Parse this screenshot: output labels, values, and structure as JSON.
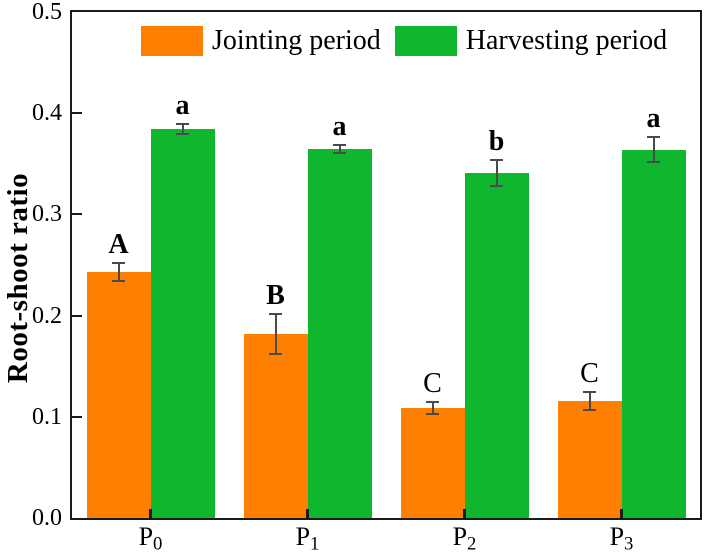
{
  "figure": {
    "background": "#ffffff",
    "frame_color": "#1a1a1a",
    "error_bar_color": "#4a4a4a"
  },
  "chart_data": {
    "type": "bar",
    "title": "",
    "xlabel": "",
    "ylabel": "Root-shoot ratio",
    "ylim": [
      0.0,
      0.5
    ],
    "ytick_step": 0.1,
    "ytick_labels": [
      "0.0",
      "0.1",
      "0.2",
      "0.3",
      "0.4",
      "0.5"
    ],
    "grid": false,
    "legend_position": "top-inside",
    "categories": [
      {
        "base": "P",
        "sub": "0"
      },
      {
        "base": "P",
        "sub": "1"
      },
      {
        "base": "P",
        "sub": "2"
      },
      {
        "base": "P",
        "sub": "3"
      }
    ],
    "series": [
      {
        "name": "Jointing period",
        "color": "#FF8000",
        "values": [
          0.243,
          0.182,
          0.109,
          0.116
        ],
        "errors": [
          0.009,
          0.02,
          0.006,
          0.009
        ],
        "sig_letters": [
          "A",
          "B",
          "C",
          "C"
        ],
        "sig_bold": [
          true,
          true,
          false,
          false
        ]
      },
      {
        "name": "Harvesting period",
        "color": "#0FB62E",
        "values": [
          0.384,
          0.365,
          0.341,
          0.364
        ],
        "errors": [
          0.005,
          0.004,
          0.013,
          0.012
        ],
        "sig_letters": [
          "a",
          "a",
          "b",
          "a"
        ],
        "sig_bold": [
          true,
          true,
          true,
          true
        ]
      }
    ]
  }
}
